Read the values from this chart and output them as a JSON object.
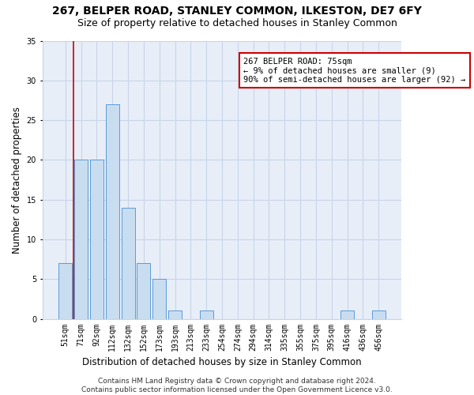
{
  "title": "267, BELPER ROAD, STANLEY COMMON, ILKESTON, DE7 6FY",
  "subtitle": "Size of property relative to detached houses in Stanley Common",
  "xlabel": "Distribution of detached houses by size in Stanley Common",
  "ylabel": "Number of detached properties",
  "bar_labels": [
    "51sqm",
    "71sqm",
    "92sqm",
    "112sqm",
    "132sqm",
    "152sqm",
    "173sqm",
    "193sqm",
    "213sqm",
    "233sqm",
    "254sqm",
    "274sqm",
    "294sqm",
    "314sqm",
    "335sqm",
    "355sqm",
    "375sqm",
    "395sqm",
    "416sqm",
    "436sqm",
    "456sqm"
  ],
  "bar_values": [
    7,
    20,
    20,
    27,
    14,
    7,
    5,
    1,
    0,
    1,
    0,
    0,
    0,
    0,
    0,
    0,
    0,
    0,
    1,
    0,
    1
  ],
  "bar_color": "#c9ddf0",
  "bar_edge_color": "#5b9bd5",
  "vline_x": 0.5,
  "vline_color": "#cc0000",
  "annotation_text": "267 BELPER ROAD: 75sqm\n← 9% of detached houses are smaller (9)\n90% of semi-detached houses are larger (92) →",
  "annotation_box_color": "#ffffff",
  "annotation_box_edgecolor": "#cc0000",
  "ylim": [
    0,
    35
  ],
  "yticks": [
    0,
    5,
    10,
    15,
    20,
    25,
    30,
    35
  ],
  "grid_color": "#c8d4e8",
  "bg_color": "#e8eef8",
  "footer": "Contains HM Land Registry data © Crown copyright and database right 2024.\nContains public sector information licensed under the Open Government Licence v3.0.",
  "title_fontsize": 10,
  "subtitle_fontsize": 9,
  "ylabel_fontsize": 8.5,
  "xlabel_fontsize": 8.5,
  "tick_fontsize": 7,
  "footer_fontsize": 6.5,
  "annot_fontsize": 7.5
}
